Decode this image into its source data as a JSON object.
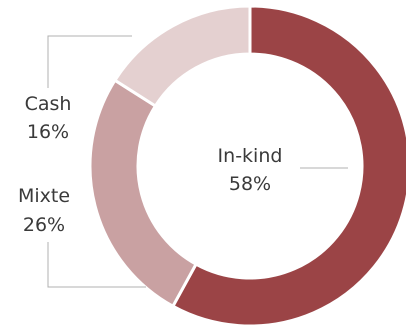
{
  "chart_data": {
    "type": "pie",
    "style": "donut",
    "slices": [
      {
        "label": "In-kind",
        "value": 58,
        "value_label": "58%",
        "color": "#9b4446"
      },
      {
        "label": "Mixte",
        "value": 26,
        "value_label": "26%",
        "color": "#c9a1a2"
      },
      {
        "label": "Cash",
        "value": 16,
        "value_label": "16%",
        "color": "#e4d0d0"
      }
    ],
    "start": "top",
    "direction": "clockwise",
    "legend": "none"
  }
}
